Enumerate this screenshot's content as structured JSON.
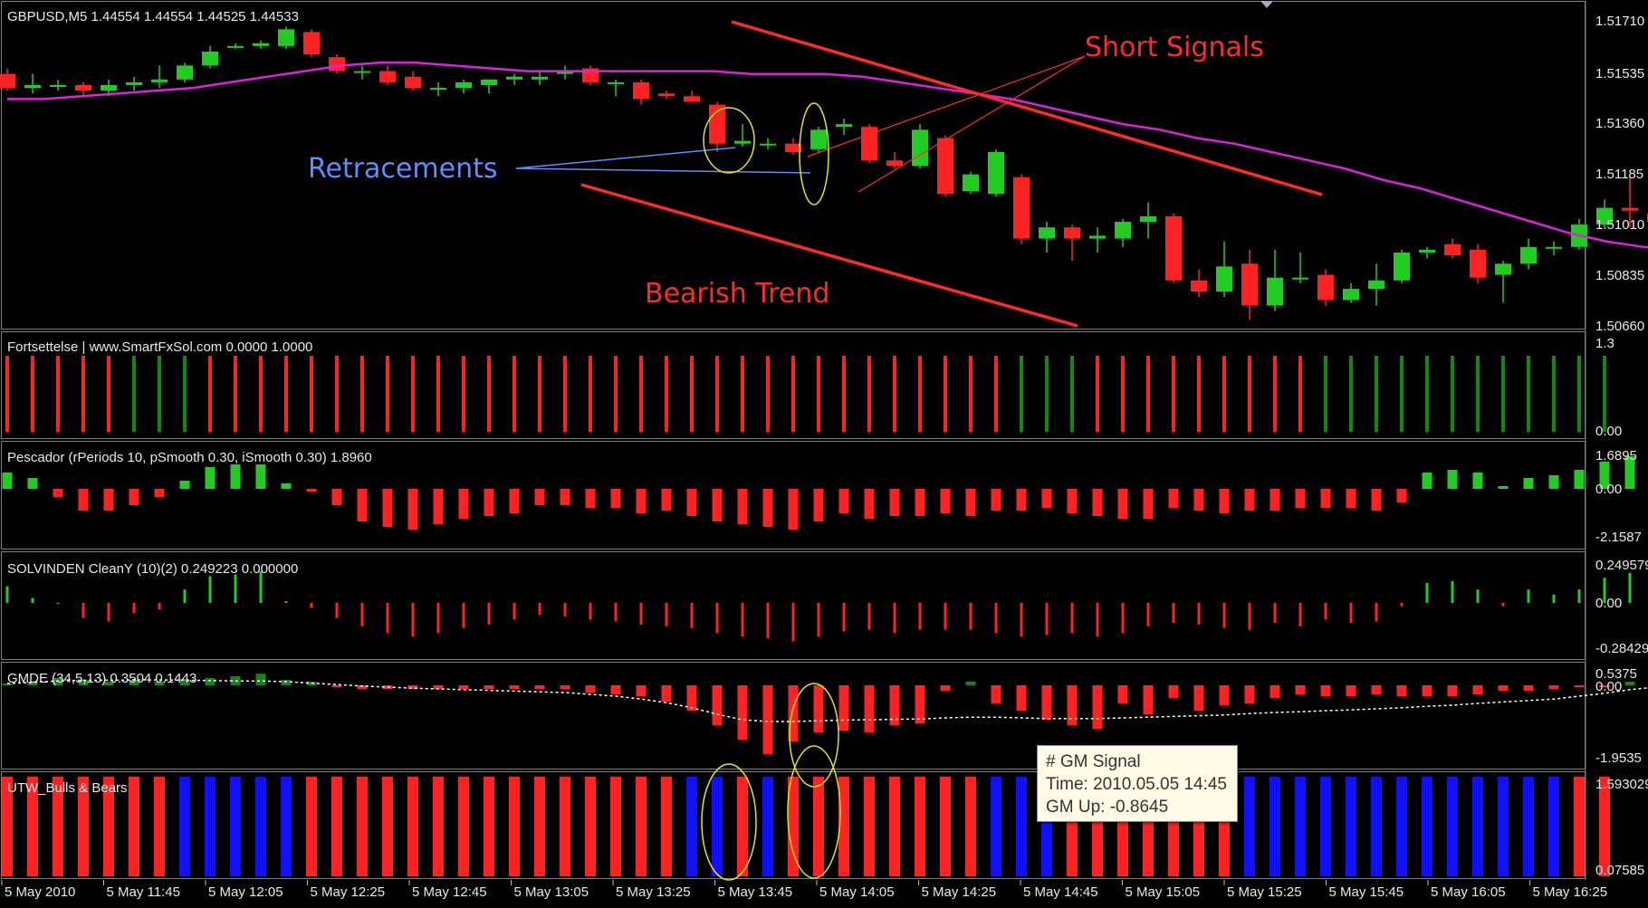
{
  "colors": {
    "bull": "#22cc22",
    "bear": "#ff2222",
    "ma": "#e020e0",
    "blue": "#1010ff",
    "dkgreen": "#118811",
    "annot_red": "#ff2a2a",
    "annot_blue": "#5d8dff",
    "ellipse": "#e6e600"
  },
  "panels": [
    {
      "id": "price",
      "label": "GBPUSD,M5  1.44554 1.44554 1.44525 1.44533",
      "y_ticks": [
        "1.51710",
        "1.51535",
        "1.51360",
        "1.51185",
        "1.51010",
        "1.50835",
        "1.50660"
      ]
    },
    {
      "id": "fortsettelse",
      "label": "Fortsettelse | www.SmartFxSol.com   0.0000 1.0000",
      "y_ticks": [
        "1.3",
        "0.00"
      ],
      "colors_seq": "RRRRRGGGRRRRRRRRRRRRRRRRRRRRRRRRRRRRRRRRGGGRRRRRRRRRGGGGGGGGGGGG"
    },
    {
      "id": "pescador",
      "label": "Pescador  (rPeriods 10, pSmooth 0.30, iSmooth 0.30)   1.8960",
      "y_ticks": [
        "1.6895",
        "0.00",
        "-2.1587"
      ]
    },
    {
      "id": "solvinden",
      "label": "SOLVINDEN CleanY (10)(2) 0.249223 0.000000",
      "y_ticks": [
        "0.249579",
        "0.00",
        "-0.28429"
      ]
    },
    {
      "id": "gmde",
      "label": "GMDE (34,5,13) 0.3504 0.1443",
      "y_ticks": [
        "0.5375",
        "0.00",
        "-1.9535"
      ]
    },
    {
      "id": "utw",
      "label": "UTW_Bulls & Bears",
      "y_ticks": [
        "1.593029",
        "0.07585"
      ],
      "colors_seq": "RRRRRRRBBBBBRRRRRRRRRRRRRRRBBRBRRRRRRRRBBBRRRRRRRBBBBBBBBBBBBBRR"
    }
  ],
  "x_axis": {
    "labels": [
      "5 May 2010",
      "5 May 11:45",
      "5 May 12:05",
      "5 May 12:25",
      "5 May 12:45",
      "5 May 13:05",
      "5 May 13:25",
      "5 May 13:45",
      "5 May 14:05",
      "5 May 14:25",
      "5 May 14:45",
      "5 May 15:05",
      "5 May 15:25",
      "5 May 15:45",
      "5 May 16:05",
      "5 May 16:25"
    ]
  },
  "annotations": {
    "short_signals": "Short Signals",
    "retracements": "Retracements",
    "bearish_trend": "Bearish Trend"
  },
  "tooltip": {
    "line1": "# GM Signal",
    "line2": "Time: 2010.05.05 14:45",
    "line3": "GM Up: -0.8645"
  },
  "chart_data": [
    {
      "type": "candlestick",
      "symbol": "GBPUSD",
      "timeframe": "M5",
      "ylim": [
        1.5066,
        1.5175
      ],
      "ohlc": [
        [
          1.5155,
          1.5157,
          1.5149,
          1.515
        ],
        [
          1.515,
          1.5155,
          1.5148,
          1.5151
        ],
        [
          1.5151,
          1.5153,
          1.5149,
          1.5151
        ],
        [
          1.5151,
          1.5152,
          1.5147,
          1.5149
        ],
        [
          1.5149,
          1.5153,
          1.5147,
          1.5151
        ],
        [
          1.5151,
          1.5154,
          1.5149,
          1.5152
        ],
        [
          1.5152,
          1.5158,
          1.515,
          1.5153
        ],
        [
          1.5153,
          1.5159,
          1.5152,
          1.5158
        ],
        [
          1.5158,
          1.5165,
          1.5157,
          1.5163
        ],
        [
          1.5165,
          1.5166,
          1.5164,
          1.5165
        ],
        [
          1.5165,
          1.5167,
          1.5164,
          1.5166
        ],
        [
          1.5165,
          1.5172,
          1.5164,
          1.5171
        ],
        [
          1.517,
          1.5171,
          1.5161,
          1.5162
        ],
        [
          1.5161,
          1.5162,
          1.5155,
          1.5156
        ],
        [
          1.5156,
          1.5158,
          1.5153,
          1.5156
        ],
        [
          1.5156,
          1.5158,
          1.5151,
          1.5152
        ],
        [
          1.5154,
          1.5156,
          1.5149,
          1.515
        ],
        [
          1.515,
          1.5152,
          1.5147,
          1.515
        ],
        [
          1.515,
          1.5153,
          1.5148,
          1.5152
        ],
        [
          1.5151,
          1.5153,
          1.5148,
          1.5153
        ],
        [
          1.5153,
          1.5155,
          1.5151,
          1.5154
        ],
        [
          1.5153,
          1.5156,
          1.5151,
          1.5154
        ],
        [
          1.5155,
          1.5158,
          1.5153,
          1.5156
        ],
        [
          1.5157,
          1.5158,
          1.5151,
          1.5152
        ],
        [
          1.5152,
          1.5153,
          1.5147,
          1.5152
        ],
        [
          1.5152,
          1.5153,
          1.5144,
          1.5146
        ],
        [
          1.5148,
          1.5149,
          1.5146,
          1.5147
        ],
        [
          1.5147,
          1.5149,
          1.5145,
          1.5145
        ],
        [
          1.5144,
          1.5145,
          1.5127,
          1.513
        ],
        [
          1.513,
          1.5137,
          1.5129,
          1.5131
        ],
        [
          1.513,
          1.5132,
          1.5128,
          1.513
        ],
        [
          1.513,
          1.5132,
          1.5126,
          1.5127
        ],
        [
          1.5128,
          1.5136,
          1.5127,
          1.5135
        ],
        [
          1.5136,
          1.5139,
          1.5133,
          1.5137
        ],
        [
          1.5136,
          1.5137,
          1.5123,
          1.5124
        ],
        [
          1.5124,
          1.5127,
          1.5121,
          1.5122
        ],
        [
          1.5122,
          1.5137,
          1.5121,
          1.5135
        ],
        [
          1.5132,
          1.5133,
          1.5111,
          1.5112
        ],
        [
          1.5113,
          1.512,
          1.5112,
          1.5119
        ],
        [
          1.5112,
          1.5128,
          1.5111,
          1.5127
        ],
        [
          1.5118,
          1.5119,
          1.5094,
          1.5096
        ],
        [
          1.5096,
          1.5102,
          1.5091,
          1.51
        ],
        [
          1.51,
          1.5101,
          1.5088,
          1.5096
        ],
        [
          1.5096,
          1.51,
          1.5091,
          1.5097
        ],
        [
          1.5096,
          1.5103,
          1.5093,
          1.5102
        ],
        [
          1.5102,
          1.5109,
          1.5096,
          1.5104
        ],
        [
          1.5104,
          1.5105,
          1.508,
          1.5081
        ],
        [
          1.5081,
          1.5085,
          1.5075,
          1.5077
        ],
        [
          1.5077,
          1.5095,
          1.5075,
          1.5086
        ],
        [
          1.5087,
          1.5092,
          1.5067,
          1.5072
        ],
        [
          1.5072,
          1.5092,
          1.507,
          1.5082
        ],
        [
          1.5082,
          1.5091,
          1.508,
          1.5082
        ],
        [
          1.5083,
          1.5085,
          1.5072,
          1.5074
        ],
        [
          1.5074,
          1.508,
          1.5073,
          1.5078
        ],
        [
          1.5078,
          1.5087,
          1.5072,
          1.5081
        ],
        [
          1.5081,
          1.5092,
          1.508,
          1.5091
        ],
        [
          1.5091,
          1.5093,
          1.5089,
          1.5092
        ],
        [
          1.5094,
          1.5096,
          1.5089,
          1.509
        ],
        [
          1.5092,
          1.5094,
          1.508,
          1.5082
        ],
        [
          1.5083,
          1.5088,
          1.5073,
          1.5087
        ],
        [
          1.5087,
          1.5096,
          1.5085,
          1.5093
        ],
        [
          1.5093,
          1.5095,
          1.509,
          1.5093
        ],
        [
          1.5093,
          1.5103,
          1.5092,
          1.5101
        ],
        [
          1.5101,
          1.511,
          1.51,
          1.5107
        ],
        [
          1.5107,
          1.5118,
          1.51,
          1.5106
        ],
        [
          1.5105,
          1.5108,
          1.51,
          1.5102
        ],
        [
          1.5104,
          1.5111,
          1.51,
          1.5109
        ]
      ],
      "ma": [
        1.5146,
        1.5146,
        1.5147,
        1.5148,
        1.5149,
        1.515,
        1.5152,
        1.5154,
        1.5156,
        1.5158,
        1.5159,
        1.5159,
        1.5158,
        1.5157,
        1.5156,
        1.5156,
        1.5156,
        1.5156,
        1.5156,
        1.5156,
        1.5155,
        1.5155,
        1.5155,
        1.5154,
        1.5152,
        1.515,
        1.5148,
        1.5146,
        1.5143,
        1.514,
        1.5137,
        1.5135,
        1.5132,
        1.513,
        1.5127,
        1.5124,
        1.5121,
        1.5117,
        1.5114,
        1.511,
        1.5106,
        1.5102,
        1.5098,
        1.5095,
        1.5093,
        1.5092
      ]
    },
    {
      "type": "bar",
      "name": "Pescador",
      "values": [
        0.6,
        0.4,
        -0.3,
        -0.8,
        -0.8,
        -0.6,
        -0.3,
        0.3,
        0.8,
        0.9,
        0.9,
        0.2,
        -0.1,
        -0.6,
        -1.2,
        -1.4,
        -1.5,
        -1.3,
        -1.1,
        -1.0,
        -0.9,
        -0.6,
        -0.6,
        -0.7,
        -0.7,
        -0.9,
        -0.8,
        -1.0,
        -1.2,
        -1.3,
        -1.4,
        -1.5,
        -1.2,
        -0.9,
        -1.1,
        -1.0,
        -1.0,
        -0.9,
        -1.0,
        -0.8,
        -0.8,
        -0.7,
        -0.9,
        -1.0,
        -1.1,
        -1.1,
        -0.7,
        -0.8,
        -0.9,
        -0.8,
        -0.8,
        -0.7,
        -0.7,
        -0.7,
        -0.8,
        -0.5,
        0.6,
        0.7,
        0.6,
        0.1,
        0.4,
        0.5,
        0.7,
        1.0,
        1.2,
        1.1,
        1.0
      ]
    },
    {
      "type": "bar",
      "name": "SOLVINDEN",
      "values": [
        0.1,
        0.03,
        0,
        -0.09,
        -0.11,
        -0.06,
        -0.04,
        0.08,
        0.16,
        0.17,
        0.19,
        0.01,
        -0.03,
        -0.09,
        -0.14,
        -0.18,
        -0.2,
        -0.18,
        -0.15,
        -0.13,
        -0.1,
        -0.07,
        -0.08,
        -0.1,
        -0.11,
        -0.13,
        -0.14,
        -0.15,
        -0.18,
        -0.2,
        -0.21,
        -0.23,
        -0.2,
        -0.17,
        -0.16,
        -0.18,
        -0.16,
        -0.16,
        -0.16,
        -0.18,
        -0.2,
        -0.19,
        -0.18,
        -0.2,
        -0.18,
        -0.14,
        -0.12,
        -0.13,
        -0.15,
        -0.16,
        -0.12,
        -0.14,
        -0.1,
        -0.12,
        -0.11,
        -0.02,
        0.12,
        0.13,
        0.08,
        -0.02,
        0.08,
        0.05,
        0.08,
        0.15,
        0.18,
        0.15,
        0.12
      ]
    },
    {
      "type": "bar",
      "name": "GMDE",
      "values": [
        0.05,
        0.1,
        0.2,
        0.15,
        0.1,
        0.15,
        0.1,
        0.12,
        0.2,
        0.25,
        0.32,
        0.15,
        0.1,
        -0.05,
        -0.1,
        -0.1,
        -0.1,
        -0.1,
        -0.1,
        -0.1,
        -0.1,
        -0.1,
        -0.1,
        -0.2,
        -0.25,
        -0.3,
        -0.45,
        -0.7,
        -1.1,
        -1.5,
        -1.9,
        -1.55,
        -1.3,
        -1.25,
        -1.3,
        -1.1,
        -1.05,
        -0.15,
        0.1,
        -0.5,
        -0.7,
        -0.95,
        -1.1,
        -1.2,
        -0.5,
        -0.8,
        -0.35,
        -0.7,
        -0.55,
        -0.5,
        -0.35,
        -0.25,
        -0.3,
        -0.3,
        -0.25,
        -0.3,
        -0.3,
        -0.3,
        -0.25,
        -0.15,
        -0.15,
        -0.1,
        -0.05,
        -0.05,
        0.1,
        0.1,
        0.25
      ]
    }
  ]
}
